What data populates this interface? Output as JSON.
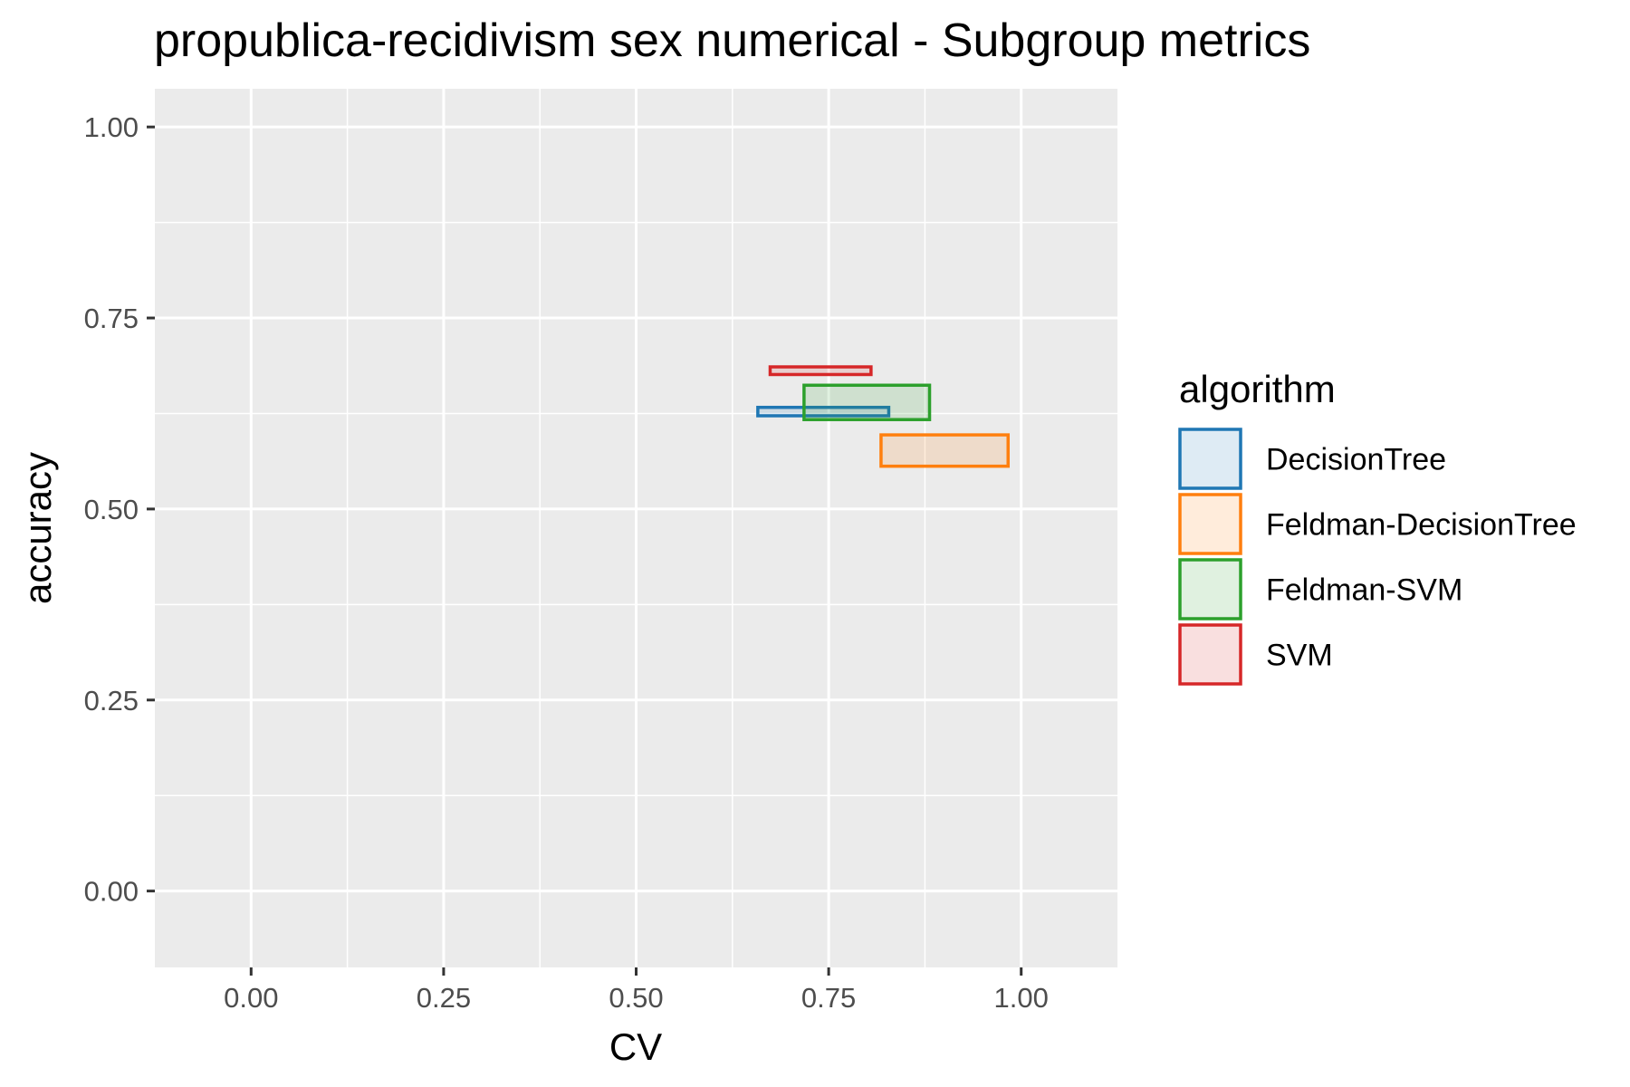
{
  "chart_data": {
    "type": "rectangle-range",
    "title": "propublica-recidivism sex numerical - Subgroup metrics",
    "xlabel": "CV",
    "ylabel": "accuracy",
    "xlim": [
      -0.125,
      1.125
    ],
    "ylim": [
      -0.1,
      1.05
    ],
    "x_ticks": [
      0.0,
      0.25,
      0.5,
      0.75,
      1.0
    ],
    "x_tick_labels": [
      "0.00",
      "0.25",
      "0.50",
      "0.75",
      "1.00"
    ],
    "y_ticks": [
      0.0,
      0.25,
      0.5,
      0.75,
      1.0
    ],
    "y_tick_labels": [
      "0.00",
      "0.25",
      "0.50",
      "0.75",
      "1.00"
    ],
    "grid": true,
    "legend": {
      "title": "algorithm",
      "placement": "right"
    },
    "series": [
      {
        "name": "DecisionTree",
        "color": "#1f77b4",
        "xmin": 0.658,
        "xmax": 0.828,
        "ymin": 0.622,
        "ymax": 0.633
      },
      {
        "name": "Feldman-DecisionTree",
        "color": "#ff7f0e",
        "xmin": 0.818,
        "xmax": 0.983,
        "ymin": 0.556,
        "ymax": 0.597
      },
      {
        "name": "Feldman-SVM",
        "color": "#2ca02c",
        "xmin": 0.718,
        "xmax": 0.881,
        "ymin": 0.617,
        "ymax": 0.662
      },
      {
        "name": "SVM",
        "color": "#d62728",
        "xmin": 0.674,
        "xmax": 0.805,
        "ymin": 0.676,
        "ymax": 0.686
      }
    ]
  }
}
